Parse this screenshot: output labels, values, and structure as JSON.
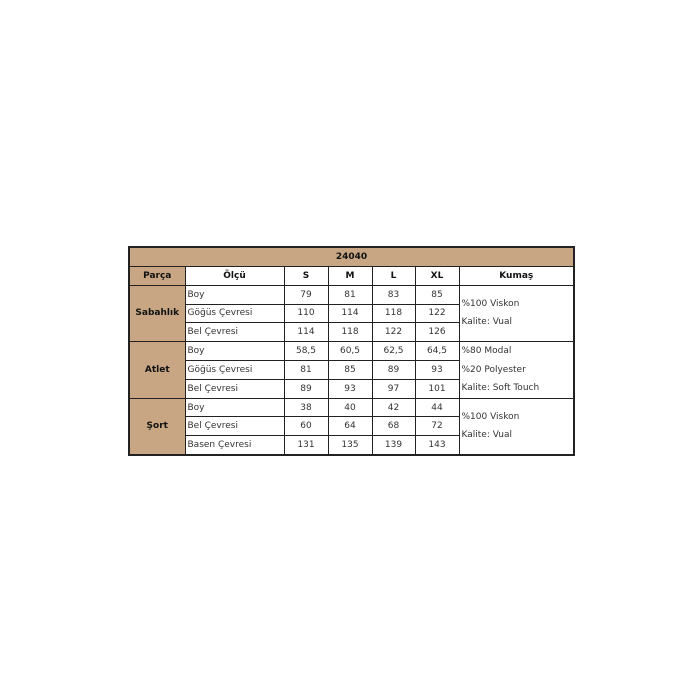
{
  "title": "24040",
  "headers": [
    "Parça",
    "Ölçü",
    "S",
    "M",
    "L",
    "XL",
    "Kumaş"
  ],
  "groups": [
    {
      "part": "Sabahlık",
      "fabric": [
        "%100 Viskon",
        "Kalite: Vual"
      ],
      "rows": [
        [
          "Boy",
          "79",
          "81",
          "83",
          "85"
        ],
        [
          "Göğüs Çevresi",
          "110",
          "114",
          "118",
          "122"
        ],
        [
          "Bel Çevresi",
          "114",
          "118",
          "122",
          "126"
        ]
      ]
    },
    {
      "part": "Atlet",
      "fabric": [
        "%80 Modal",
        "%20 Polyester",
        "Kalite: Soft Touch"
      ],
      "rows": [
        [
          "Boy",
          "58,5",
          "60,5",
          "62,5",
          "64,5"
        ],
        [
          "Göğüs Çevresi",
          "81",
          "85",
          "89",
          "93"
        ],
        [
          "Bel Çevresi",
          "89",
          "93",
          "97",
          "101"
        ]
      ]
    },
    {
      "part": "Şort",
      "fabric": [
        "%100 Viskon",
        "Kalite: Vual"
      ],
      "rows": [
        [
          "Boy",
          "38",
          "40",
          "42",
          "44"
        ],
        [
          "Bel Çevresi",
          "60",
          "64",
          "68",
          "72"
        ],
        [
          "Basen Çevresi",
          "131",
          "135",
          "139",
          "143"
        ]
      ]
    }
  ],
  "colors": {
    "header_bg": "#c8a684",
    "border": "#222222"
  }
}
